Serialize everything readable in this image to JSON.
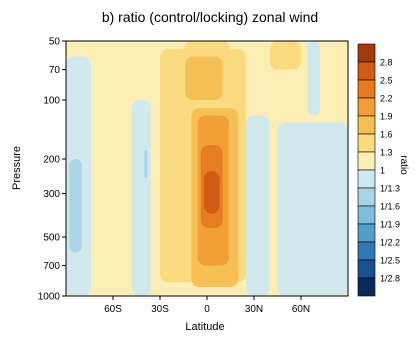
{
  "chart_data": {
    "type": "heatmap",
    "title": "b) ratio (control/locking) zonal wind",
    "xlabel": "Latitude",
    "ylabel": "Pressure",
    "colorbar_label": "ratio",
    "x_range": [
      -90,
      90
    ],
    "x_ticks": [
      {
        "value": -60,
        "label": "60S"
      },
      {
        "value": -30,
        "label": "30S"
      },
      {
        "value": 0,
        "label": "0"
      },
      {
        "value": 30,
        "label": "30N"
      },
      {
        "value": 60,
        "label": "60N"
      }
    ],
    "y_scale": "log",
    "y_range": [
      1000,
      50
    ],
    "y_ticks": [
      {
        "value": 50,
        "label": "50"
      },
      {
        "value": 70,
        "label": "70"
      },
      {
        "value": 100,
        "label": "100"
      },
      {
        "value": 200,
        "label": "200"
      },
      {
        "value": 300,
        "label": "300"
      },
      {
        "value": 500,
        "label": "500"
      },
      {
        "value": 700,
        "label": "700"
      },
      {
        "value": 1000,
        "label": "1000"
      }
    ],
    "levels": [
      {
        "label": "2.8",
        "color": "#a53a0d"
      },
      {
        "label": "2.5",
        "color": "#d15a16"
      },
      {
        "label": "2.2",
        "color": "#e67b20"
      },
      {
        "label": "1.9",
        "color": "#f29d37"
      },
      {
        "label": "1.6",
        "color": "#f7bf52"
      },
      {
        "label": "1.3",
        "color": "#fbd97d"
      },
      {
        "label": "1",
        "color": "#fdeeb5"
      },
      {
        "label": "1/1.3",
        "color": "#cfe7f0"
      },
      {
        "label": "1/1.6",
        "color": "#a9d4e8"
      },
      {
        "label": "1/1.9",
        "color": "#80bcdc"
      },
      {
        "label": "1/2.2",
        "color": "#549dcb"
      },
      {
        "label": "1/2.5",
        "color": "#2f78b4"
      },
      {
        "label": "1/2.8",
        "color": "#1b4f8f"
      },
      {
        "label": "",
        "color": "#0b2a5c"
      }
    ],
    "regions": [
      {
        "level": "1/1.3",
        "lat": [
          -90,
          -74
        ],
        "p": [
          1000,
          60
        ]
      },
      {
        "level": "1/1.3",
        "lat": [
          -48,
          -36
        ],
        "p": [
          1000,
          100
        ]
      },
      {
        "level": "1/1.3",
        "lat": [
          45,
          90
        ],
        "p": [
          1000,
          130
        ]
      },
      {
        "level": "1/1.3",
        "lat": [
          25,
          40
        ],
        "p": [
          1000,
          120
        ]
      },
      {
        "level": "1/1.3",
        "lat": [
          64,
          72
        ],
        "p": [
          120,
          50
        ]
      },
      {
        "level": "1/1.6",
        "lat": [
          -88,
          -80
        ],
        "p": [
          600,
          200
        ]
      },
      {
        "level": "1/1.6",
        "lat": [
          -40,
          -38
        ],
        "p": [
          250,
          180
        ]
      },
      {
        "level": "1.3",
        "lat": [
          -30,
          25
        ],
        "p": [
          850,
          55
        ]
      },
      {
        "level": "1.3",
        "lat": [
          -15,
          15
        ],
        "p": [
          70,
          50
        ]
      },
      {
        "level": "1.3",
        "lat": [
          40,
          60
        ],
        "p": [
          70,
          50
        ]
      },
      {
        "level": "1.6",
        "lat": [
          -14,
          10
        ],
        "p": [
          100,
          60
        ]
      },
      {
        "level": "1.6",
        "lat": [
          -10,
          20
        ],
        "p": [
          900,
          110
        ]
      },
      {
        "level": "1.9",
        "lat": [
          -6,
          14
        ],
        "p": [
          700,
          120
        ]
      },
      {
        "level": "2.2",
        "lat": [
          -4,
          10
        ],
        "p": [
          450,
          170
        ]
      },
      {
        "level": "2.5",
        "lat": [
          -2,
          8
        ],
        "p": [
          380,
          230
        ]
      }
    ]
  }
}
